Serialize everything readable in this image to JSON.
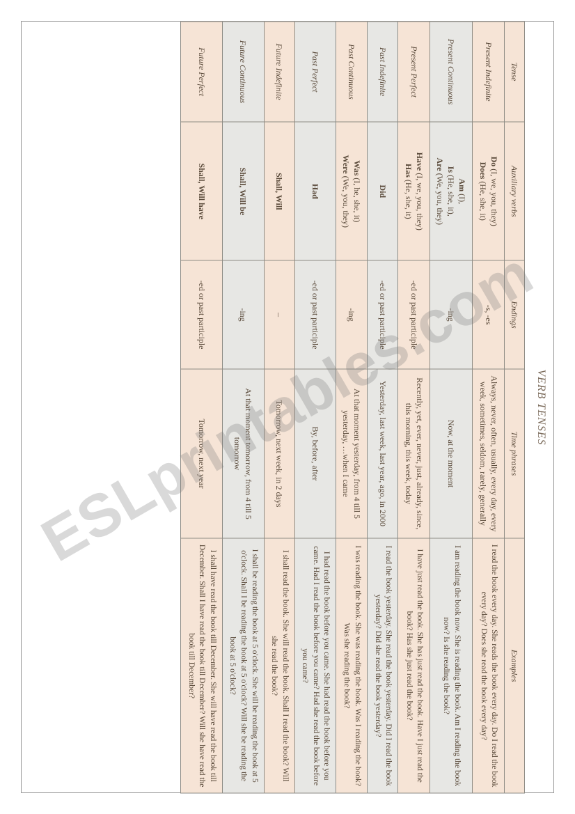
{
  "title": "VERB TENSES",
  "columns": [
    "Tense",
    "Auxiliary verbs",
    "Endings",
    "Time phrases",
    "Examples"
  ],
  "watermark": "ESLprintables.com",
  "table": {
    "header_bg": "#f6e4d6",
    "row_odd_bg": "#f6e4d6",
    "row_even_bg": "#e7e7e4",
    "border_color": "#8d8b84",
    "text_color": "#5a4a3a",
    "col_widths_pct": [
      13,
      18,
      14,
      22,
      33
    ]
  },
  "rows": [
    {
      "tense": "Present Indefinite",
      "aux": [
        {
          "bold": "Do",
          "rest": " (I, we, you, they)"
        },
        {
          "bold": "Does",
          "rest": " (He, she, it)"
        }
      ],
      "endings": "-s, -es",
      "time": "Always, never, often, usually, every day, every week, sometimes, seldom, rarely, generally",
      "examples": "I read the book every day. She reads the book every day. Do I read the book every day? Does she read the book every day?"
    },
    {
      "tense": "Present Continuous",
      "aux": [
        {
          "bold": "Am",
          "rest": " (I), "
        },
        {
          "bold": "Is",
          "rest": " (He, she, it), "
        },
        {
          "bold": "Are",
          "rest": " (We, you, they)"
        }
      ],
      "endings": "-ing",
      "time": "Now, at the moment",
      "examples": "I am reading the book now. She is reading the book. Am I reading the book now? Is she reading the book?"
    },
    {
      "tense": "Present Perfect",
      "aux": [
        {
          "bold": "Have",
          "rest": " (I, we, you, they)"
        },
        {
          "bold": "Has",
          "rest": " (He, she, it)"
        }
      ],
      "endings": "-ed or past participle",
      "time": "Recently, yet, ever, never, just, already, since, this morning, this week, today",
      "examples": "I have just read the book. She has just read the book. Have I just read the book? Has she just read the book?"
    },
    {
      "tense": "Past Indefinite",
      "aux": [
        {
          "bold": "Did",
          "rest": ""
        }
      ],
      "endings": "-ed or past participle",
      "time": "Yesterday, last week, last year, ago, in 2000",
      "examples": "I read the book yesterday. She read the book yesterday. Did I read the book yesterday? Did she read the book yesterday?"
    },
    {
      "tense": "Past Continuous",
      "aux": [
        {
          "bold": "Was",
          "rest": " (I, he, she, it)"
        },
        {
          "bold": "Were",
          "rest": " (We, you, they)"
        }
      ],
      "endings": "-ing",
      "time": "At that moment yesterday, from 4 till 5 yesterday, …when I came",
      "examples": "I was reading the book. She was reading the book. Was I reading the book? Was she reading the book?"
    },
    {
      "tense": "Past Perfect",
      "aux": [
        {
          "bold": "Had",
          "rest": ""
        }
      ],
      "endings": "-ed or past participle",
      "time": "By, before, after",
      "examples": "I had read the book before you came. She had read the book before you came. Had I read the book before you came? Had she read the book before you came?"
    },
    {
      "tense": "Future Indefinite",
      "aux": [
        {
          "bold": "Shall, Will",
          "rest": ""
        }
      ],
      "endings": "–",
      "time": "Tomorrow, next week, in 2 days",
      "examples": "I shall read the book. She will read the book. Shall I read the book? Will she read the book?"
    },
    {
      "tense": "Future Continuous",
      "aux": [
        {
          "bold": "Shall, Will be",
          "rest": ""
        }
      ],
      "endings": "-ing",
      "time": "At that moment tomorrow, from 4 till 5 tomorrow",
      "examples": "I shall be reading the book at 5 o'clock. She will be reading the book at 5 o'clock. Shall I be reading the book at 5 o'clock? Will she be reading the book at 5 o'clock?"
    },
    {
      "tense": "Future Perfect",
      "aux": [
        {
          "bold": "Shall, Will have",
          "rest": ""
        }
      ],
      "endings": "-ed or past participle",
      "time": "Tomorrow, next year",
      "examples": "I shall have read the book till December. She will have read the book till December. Shall I have read the book till December? Will she have read the book till December?"
    }
  ]
}
